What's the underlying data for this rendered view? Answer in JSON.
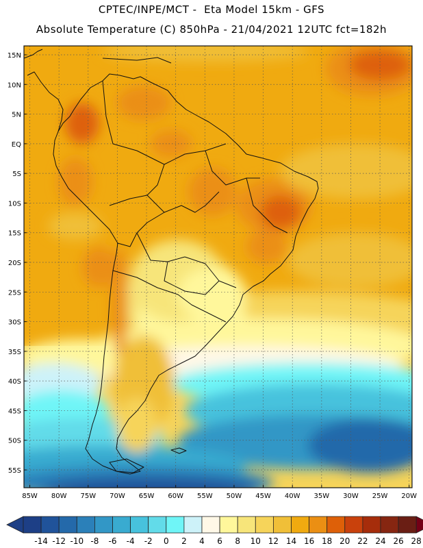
{
  "header": {
    "line1": "CPTEC/INPE/MCT -  Eta Model 15km - GFS",
    "line2": "Absolute Temperature (C) 850hPa - 21/04/2021 12UTC fct=182h"
  },
  "axes": {
    "lat_labels": [
      "15N",
      "10N",
      "5N",
      "EQ",
      "5S",
      "10S",
      "15S",
      "20S",
      "25S",
      "30S",
      "35S",
      "40S",
      "45S",
      "50S",
      "55S"
    ],
    "lon_labels": [
      "85W",
      "80W",
      "75W",
      "70W",
      "65W",
      "60W",
      "55W",
      "50W",
      "45W",
      "40W",
      "35W",
      "30W",
      "25W",
      "20W"
    ],
    "lat_range": [
      -58,
      16.5
    ],
    "lon_range": [
      -86,
      -19.5
    ]
  },
  "colorbar": {
    "labels": [
      "-14",
      "-12",
      "-10",
      "-8",
      "-6",
      "-4",
      "-2",
      "0",
      "2",
      "4",
      "6",
      "8",
      "10",
      "12",
      "14",
      "16",
      "18",
      "20",
      "22",
      "24",
      "26",
      "28"
    ],
    "colors": [
      "#1d3f86",
      "#20539a",
      "#2469aa",
      "#2b80b9",
      "#3297c6",
      "#39abd0",
      "#47c2dd",
      "#62dbe9",
      "#6ff5f7",
      "#cdf2f9",
      "#fff8e7",
      "#fff79b",
      "#f7e57a",
      "#f6d45a",
      "#f0bf38",
      "#f0aa10",
      "#eb8f13",
      "#de6008",
      "#c9410c",
      "#a62d0b",
      "#862611",
      "#6a1e14",
      "#740016"
    ],
    "under_color": "#1d3f86",
    "over_color": "#740016"
  }
}
